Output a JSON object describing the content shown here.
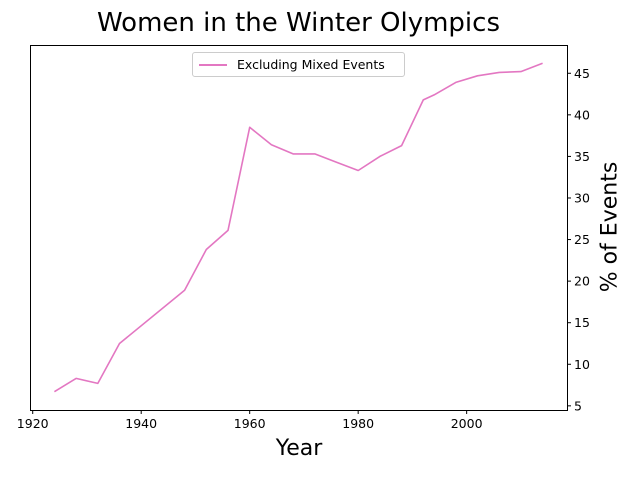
{
  "chart_data": {
    "type": "line",
    "title": "Women in the Winter Olympics",
    "xlabel": "Year",
    "ylabel": "% of Events",
    "xlim": [
      1919.5,
      2018.5
    ],
    "ylim": [
      4.5,
      48.4
    ],
    "xticks": [
      1920,
      1940,
      1960,
      1980,
      2000
    ],
    "yticks": [
      5,
      10,
      15,
      20,
      25,
      30,
      35,
      40,
      45
    ],
    "y_axis_side": "right",
    "legend_position": "top-center",
    "grid": false,
    "series": [
      {
        "name": "Excluding Mixed Events",
        "color": "#e377c2",
        "x": [
          1924,
          1928,
          1932,
          1936,
          1948,
          1952,
          1956,
          1960,
          1964,
          1968,
          1972,
          1976,
          1980,
          1984,
          1988,
          1992,
          1994,
          1998,
          2002,
          2006,
          2010,
          2014
        ],
        "y": [
          6.7,
          8.3,
          7.7,
          12.5,
          18.9,
          23.8,
          26.1,
          38.5,
          36.4,
          35.3,
          35.3,
          34.3,
          33.3,
          35.0,
          36.3,
          41.8,
          42.4,
          43.9,
          44.7,
          45.1,
          45.2,
          46.2
        ]
      }
    ]
  }
}
